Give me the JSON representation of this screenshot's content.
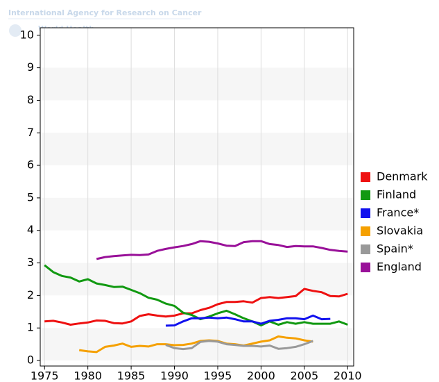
{
  "header": {
    "lines": [
      "International Agency for Research on Cancer",
      "World Health"
    ]
  },
  "chart_data": {
    "type": "line",
    "banded": true,
    "grid": true,
    "legend": "right",
    "x": [
      1975,
      1976,
      1977,
      1978,
      1979,
      1980,
      1981,
      1982,
      1983,
      1984,
      1985,
      1986,
      1987,
      1988,
      1989,
      1990,
      1991,
      1992,
      1993,
      1994,
      1995,
      1996,
      1997,
      1998,
      1999,
      2000,
      2001,
      2002,
      2003,
      2004,
      2005,
      2006,
      2007,
      2008,
      2009,
      2010
    ],
    "xlim": [
      1974.5,
      2010.7
    ],
    "xticks": [
      1975,
      1980,
      1985,
      1990,
      1995,
      2000,
      2005,
      2010
    ],
    "ylim": [
      -0.17,
      10.23
    ],
    "yticks": [
      0,
      1,
      2,
      3,
      4,
      5,
      6,
      7,
      8,
      9,
      10
    ],
    "series": [
      {
        "name": "Denmark",
        "color": "#ee1111",
        "values": [
          1.2,
          1.22,
          1.17,
          1.1,
          1.14,
          1.17,
          1.23,
          1.22,
          1.15,
          1.14,
          1.2,
          1.37,
          1.42,
          1.38,
          1.35,
          1.38,
          1.45,
          1.45,
          1.55,
          1.62,
          1.73,
          1.8,
          1.8,
          1.82,
          1.78,
          1.92,
          1.95,
          1.92,
          1.95,
          1.98,
          2.2,
          2.14,
          2.1,
          1.98,
          1.97,
          2.05
        ]
      },
      {
        "name": "Finland",
        "color": "#119911",
        "values": [
          2.93,
          2.72,
          2.6,
          2.55,
          2.43,
          2.5,
          2.37,
          2.32,
          2.26,
          2.27,
          2.17,
          2.07,
          1.93,
          1.87,
          1.75,
          1.68,
          1.47,
          1.4,
          1.27,
          1.35,
          1.45,
          1.53,
          1.42,
          1.3,
          1.2,
          1.08,
          1.2,
          1.1,
          1.18,
          1.13,
          1.18,
          1.13,
          1.13,
          1.13,
          1.2,
          1.1
        ]
      },
      {
        "name": "France*",
        "color": "#1111ee",
        "values": [
          null,
          null,
          null,
          null,
          null,
          null,
          null,
          null,
          null,
          null,
          null,
          null,
          null,
          null,
          1.07,
          1.08,
          1.2,
          1.3,
          1.3,
          1.32,
          1.3,
          1.32,
          1.27,
          1.2,
          1.2,
          1.13,
          1.22,
          1.25,
          1.3,
          1.3,
          1.27,
          1.38,
          1.27,
          1.28,
          null,
          null
        ]
      },
      {
        "name": "Slovakia",
        "color": "#f5a000",
        "values": [
          null,
          null,
          null,
          null,
          0.32,
          0.28,
          0.26,
          0.42,
          0.46,
          0.52,
          0.42,
          0.45,
          0.43,
          0.5,
          0.5,
          0.47,
          0.48,
          0.52,
          0.6,
          0.62,
          0.6,
          0.52,
          0.5,
          0.46,
          0.52,
          0.58,
          0.62,
          0.74,
          0.7,
          0.68,
          0.62,
          0.58,
          null,
          null,
          null,
          null
        ]
      },
      {
        "name": "Spain*",
        "color": "#999999",
        "values": [
          null,
          null,
          null,
          null,
          null,
          null,
          null,
          null,
          null,
          null,
          null,
          null,
          null,
          null,
          0.48,
          0.38,
          0.35,
          0.38,
          0.57,
          0.6,
          0.58,
          0.5,
          0.48,
          0.45,
          0.45,
          0.43,
          0.46,
          0.36,
          0.38,
          0.42,
          0.5,
          0.6,
          null,
          null,
          null,
          null
        ]
      },
      {
        "name": "England",
        "color": "#991199",
        "values": [
          null,
          null,
          null,
          null,
          null,
          null,
          3.12,
          3.18,
          3.21,
          3.23,
          3.25,
          3.24,
          3.26,
          3.37,
          3.43,
          3.48,
          3.52,
          3.58,
          3.67,
          3.65,
          3.6,
          3.53,
          3.52,
          3.64,
          3.67,
          3.67,
          3.58,
          3.55,
          3.49,
          3.52,
          3.51,
          3.51,
          3.46,
          3.4,
          3.37,
          3.35
        ]
      }
    ]
  }
}
